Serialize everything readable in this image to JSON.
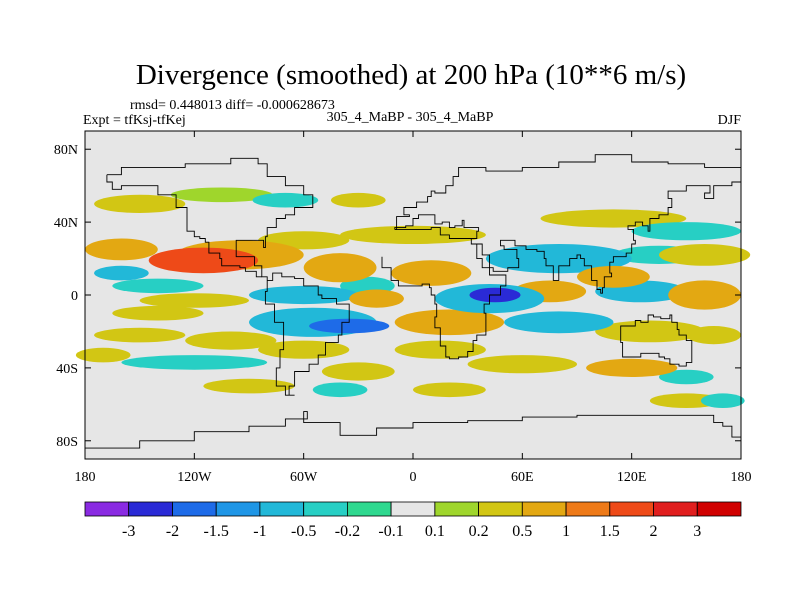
{
  "chart_data": {
    "type": "heatmap",
    "title": "Divergence (smoothed) at 200 hPa (10**6 m/s)",
    "stats": "rmsd= 0.448013 diff= -0.000628673",
    "experiment": "Expt = tfKsj-tfKej",
    "case": "305_4_MaBP - 305_4_MaBP",
    "season": "DJF",
    "x_ticks": [
      {
        "lon": -180,
        "label": "180"
      },
      {
        "lon": -120,
        "label": "120W"
      },
      {
        "lon": -60,
        "label": "60W"
      },
      {
        "lon": 0,
        "label": "0"
      },
      {
        "lon": 60,
        "label": "60E"
      },
      {
        "lon": 120,
        "label": "120E"
      },
      {
        "lon": 180,
        "label": "180"
      }
    ],
    "y_ticks": [
      {
        "lat": 80,
        "label": "80N"
      },
      {
        "lat": 40,
        "label": "40N"
      },
      {
        "lat": 0,
        "label": "0"
      },
      {
        "lat": -40,
        "label": "40S"
      },
      {
        "lat": -80,
        "label": "80S"
      }
    ],
    "xlim": [
      -180,
      180
    ],
    "ylim": [
      -90,
      90
    ],
    "levels": [
      "-3",
      "-2",
      "-1.5",
      "-1",
      "-0.5",
      "-0.2",
      "-0.1",
      "0.1",
      "0.2",
      "0.5",
      "1",
      "1.5",
      "2",
      "3"
    ],
    "colors": [
      "#8a2be2",
      "#2a2ad6",
      "#1e6be8",
      "#1f96e6",
      "#22b8d8",
      "#27cfc4",
      "#2fd88f",
      "#e6e6e6",
      "#9fd62c",
      "#d2c614",
      "#e3a812",
      "#ee7a18",
      "#ee4a18",
      "#e01e1e",
      "#d00000"
    ],
    "features": [
      {
        "lon": -150,
        "lat": 50,
        "wlon": 25,
        "wlat": 5,
        "v": 0.25
      },
      {
        "lon": -105,
        "lat": 55,
        "wlon": 28,
        "wlat": 4,
        "v": 0.2
      },
      {
        "lon": -70,
        "lat": 52,
        "wlon": 18,
        "wlat": 4,
        "v": -0.25
      },
      {
        "lon": -30,
        "lat": 52,
        "wlon": 15,
        "wlat": 4,
        "v": 0.25
      },
      {
        "lon": 110,
        "lat": 42,
        "wlon": 40,
        "wlat": 5,
        "v": 0.3
      },
      {
        "lon": 150,
        "lat": 35,
        "wlon": 30,
        "wlat": 5,
        "v": -0.4
      },
      {
        "lon": 160,
        "lat": 22,
        "wlon": 25,
        "wlat": 6,
        "v": 0.4
      },
      {
        "lon": -160,
        "lat": 25,
        "wlon": 20,
        "wlat": 6,
        "v": 0.6
      },
      {
        "lon": -115,
        "lat": 19,
        "wlon": 30,
        "wlat": 7,
        "v": 1.9
      },
      {
        "lon": -95,
        "lat": 22,
        "wlon": 35,
        "wlat": 8,
        "v": 0.7
      },
      {
        "lon": -60,
        "lat": 30,
        "wlon": 25,
        "wlat": 5,
        "v": 0.25
      },
      {
        "lon": -140,
        "lat": 5,
        "wlon": 25,
        "wlat": 4,
        "v": -0.3
      },
      {
        "lon": -160,
        "lat": 12,
        "wlon": 15,
        "wlat": 4,
        "v": -0.5
      },
      {
        "lon": 0,
        "lat": 33,
        "wlon": 40,
        "wlat": 5,
        "v": 0.4
      },
      {
        "lon": 80,
        "lat": 20,
        "wlon": 40,
        "wlat": 8,
        "v": -0.5
      },
      {
        "lon": 110,
        "lat": 10,
        "wlon": 20,
        "wlat": 6,
        "v": 0.6
      },
      {
        "lon": 135,
        "lat": 22,
        "wlon": 25,
        "wlat": 5,
        "v": -0.3
      },
      {
        "lon": -40,
        "lat": 15,
        "wlon": 20,
        "wlat": 8,
        "v": 0.6
      },
      {
        "lon": 10,
        "lat": 12,
        "wlon": 22,
        "wlat": 7,
        "v": 0.7
      },
      {
        "lon": 45,
        "lat": 0,
        "wlon": 14,
        "wlat": 4,
        "v": -2.4
      },
      {
        "lon": 42,
        "lat": -2,
        "wlon": 30,
        "wlat": 8,
        "v": -0.9
      },
      {
        "lon": 75,
        "lat": 2,
        "wlon": 20,
        "wlat": 6,
        "v": 0.7
      },
      {
        "lon": 125,
        "lat": 2,
        "wlon": 25,
        "wlat": 6,
        "v": -0.5
      },
      {
        "lon": 160,
        "lat": 0,
        "wlon": 20,
        "wlat": 8,
        "v": 0.6
      },
      {
        "lon": -60,
        "lat": 0,
        "wlon": 30,
        "wlat": 5,
        "v": -0.6
      },
      {
        "lon": -120,
        "lat": -3,
        "wlon": 30,
        "wlat": 4,
        "v": 0.35
      },
      {
        "lon": -25,
        "lat": 5,
        "wlon": 15,
        "wlat": 5,
        "v": -0.4
      },
      {
        "lon": -20,
        "lat": -2,
        "wlon": 15,
        "wlat": 5,
        "v": 0.9
      },
      {
        "lon": -140,
        "lat": -10,
        "wlon": 25,
        "wlat": 4,
        "v": 0.3
      },
      {
        "lon": -35,
        "lat": -17,
        "wlon": 22,
        "wlat": 4,
        "v": -1.8
      },
      {
        "lon": -55,
        "lat": -15,
        "wlon": 35,
        "wlat": 8,
        "v": -0.8
      },
      {
        "lon": 20,
        "lat": -15,
        "wlon": 30,
        "wlat": 7,
        "v": 0.6
      },
      {
        "lon": 80,
        "lat": -15,
        "wlon": 30,
        "wlat": 6,
        "v": -0.5
      },
      {
        "lon": 130,
        "lat": -20,
        "wlon": 30,
        "wlat": 6,
        "v": 0.4
      },
      {
        "lon": 165,
        "lat": -22,
        "wlon": 15,
        "wlat": 5,
        "v": 0.4
      },
      {
        "lon": -150,
        "lat": -22,
        "wlon": 25,
        "wlat": 4,
        "v": 0.5
      },
      {
        "lon": -100,
        "lat": -25,
        "wlon": 25,
        "wlat": 5,
        "v": 0.5
      },
      {
        "lon": -60,
        "lat": -30,
        "wlon": 25,
        "wlat": 5,
        "v": 0.3
      },
      {
        "lon": 15,
        "lat": -30,
        "wlon": 25,
        "wlat": 5,
        "v": 0.5
      },
      {
        "lon": -170,
        "lat": -33,
        "wlon": 15,
        "wlat": 4,
        "v": 0.3
      },
      {
        "lon": -120,
        "lat": -37,
        "wlon": 40,
        "wlat": 4,
        "v": -0.3
      },
      {
        "lon": -30,
        "lat": -42,
        "wlon": 20,
        "wlat": 5,
        "v": 0.4
      },
      {
        "lon": 60,
        "lat": -38,
        "wlon": 30,
        "wlat": 5,
        "v": 0.3
      },
      {
        "lon": 120,
        "lat": -40,
        "wlon": 25,
        "wlat": 5,
        "v": 0.6
      },
      {
        "lon": 150,
        "lat": -45,
        "wlon": 15,
        "wlat": 4,
        "v": -0.3
      },
      {
        "lon": -90,
        "lat": -50,
        "wlon": 25,
        "wlat": 4,
        "v": 0.35
      },
      {
        "lon": -40,
        "lat": -52,
        "wlon": 15,
        "wlat": 4,
        "v": -0.3
      },
      {
        "lon": 20,
        "lat": -52,
        "wlon": 20,
        "wlat": 4,
        "v": 0.3
      },
      {
        "lon": 150,
        "lat": -58,
        "wlon": 20,
        "wlat": 4,
        "v": 0.3
      },
      {
        "lon": 170,
        "lat": -58,
        "wlon": 12,
        "wlat": 4,
        "v": -0.3
      }
    ],
    "coastlines": [
      [
        [
          -168,
          66
        ],
        [
          -160,
          70
        ],
        [
          -140,
          70
        ],
        [
          -125,
          72
        ],
        [
          -100,
          75
        ],
        [
          -85,
          72
        ],
        [
          -80,
          65
        ],
        [
          -70,
          60
        ],
        [
          -60,
          55
        ],
        [
          -55,
          48
        ],
        [
          -65,
          44
        ],
        [
          -70,
          42
        ],
        [
          -75,
          37
        ],
        [
          -80,
          32
        ],
        [
          -81,
          26
        ],
        [
          -82,
          30
        ],
        [
          -90,
          30
        ],
        [
          -97,
          27
        ],
        [
          -97,
          21
        ],
        [
          -90,
          21
        ],
        [
          -87,
          16
        ],
        [
          -83,
          10
        ],
        [
          -80,
          8
        ],
        [
          -78,
          8
        ],
        [
          -80,
          2
        ],
        [
          -81,
          -5
        ],
        [
          -76,
          -15
        ],
        [
          -71,
          -20
        ],
        [
          -71,
          -30
        ],
        [
          -73,
          -40
        ],
        [
          -75,
          -50
        ],
        [
          -70,
          -55
        ],
        [
          -65,
          -55
        ],
        [
          -68,
          -50
        ],
        [
          -65,
          -42
        ],
        [
          -57,
          -38
        ],
        [
          -52,
          -33
        ],
        [
          -48,
          -26
        ],
        [
          -41,
          -22
        ],
        [
          -39,
          -15
        ],
        [
          -35,
          -8
        ],
        [
          -35,
          -5
        ],
        [
          -42,
          -2
        ],
        [
          -50,
          0
        ],
        [
          -52,
          5
        ],
        [
          -60,
          9
        ],
        [
          -65,
          10
        ],
        [
          -72,
          12
        ],
        [
          -77,
          8
        ],
        [
          -80,
          8
        ]
      ],
      [
        [
          -83,
          10
        ],
        [
          -86,
          13
        ],
        [
          -92,
          15
        ],
        [
          -95,
          16
        ],
        [
          -105,
          20
        ],
        [
          -106,
          23
        ],
        [
          -110,
          23
        ],
        [
          -112,
          29
        ],
        [
          -114,
          31
        ],
        [
          -117,
          32
        ],
        [
          -120,
          35
        ],
        [
          -124,
          40
        ],
        [
          -124,
          48
        ],
        [
          -130,
          55
        ],
        [
          -140,
          60
        ],
        [
          -150,
          60
        ],
        [
          -160,
          58
        ],
        [
          -165,
          62
        ],
        [
          -168,
          66
        ]
      ],
      [
        [
          -10,
          36
        ],
        [
          -9,
          43
        ],
        [
          -2,
          44
        ],
        [
          -5,
          48
        ],
        [
          2,
          51
        ],
        [
          8,
          54
        ],
        [
          10,
          57
        ],
        [
          12,
          56
        ],
        [
          18,
          60
        ],
        [
          22,
          65
        ],
        [
          25,
          70
        ],
        [
          30,
          70
        ],
        [
          40,
          68
        ],
        [
          60,
          70
        ],
        [
          80,
          73
        ],
        [
          100,
          77
        ],
        [
          120,
          73
        ],
        [
          140,
          72
        ],
        [
          160,
          70
        ],
        [
          180,
          68
        ]
      ],
      [
        [
          -10,
          36
        ],
        [
          -6,
          36
        ],
        [
          -2,
          36
        ],
        [
          10,
          37
        ],
        [
          15,
          33
        ],
        [
          20,
          31
        ],
        [
          30,
          31
        ],
        [
          32,
          31
        ],
        [
          35,
          35
        ],
        [
          36,
          37
        ],
        [
          28,
          41
        ],
        [
          27,
          38
        ],
        [
          23,
          37
        ],
        [
          20,
          40
        ],
        [
          16,
          39
        ],
        [
          12,
          44
        ],
        [
          8,
          44
        ],
        [
          3,
          42
        ],
        [
          0,
          38
        ],
        [
          -4,
          37
        ],
        [
          -10,
          36
        ]
      ],
      [
        [
          -17,
          21
        ],
        [
          -17,
          15
        ],
        [
          -12,
          8
        ],
        [
          -8,
          5
        ],
        [
          -2,
          5
        ],
        [
          5,
          6
        ],
        [
          9,
          4
        ],
        [
          10,
          0
        ],
        [
          12,
          -5
        ],
        [
          13,
          -12
        ],
        [
          12,
          -18
        ],
        [
          15,
          -28
        ],
        [
          18,
          -34
        ],
        [
          20,
          -35
        ],
        [
          25,
          -34
        ],
        [
          30,
          -31
        ],
        [
          33,
          -25
        ],
        [
          35,
          -22
        ],
        [
          40,
          -15
        ],
        [
          40,
          -10
        ],
        [
          39,
          -5
        ],
        [
          42,
          0
        ],
        [
          48,
          5
        ],
        [
          51,
          11
        ],
        [
          44,
          11
        ],
        [
          42,
          15
        ],
        [
          38,
          20
        ],
        [
          35,
          28
        ],
        [
          32,
          31
        ]
      ],
      [
        [
          34,
          28
        ],
        [
          38,
          22
        ],
        [
          42,
          15
        ],
        [
          44,
          13
        ],
        [
          52,
          15
        ],
        [
          58,
          20
        ],
        [
          57,
          25
        ],
        [
          50,
          27
        ],
        [
          48,
          30
        ],
        [
          50,
          30
        ],
        [
          56,
          27
        ],
        [
          62,
          25
        ],
        [
          68,
          24
        ],
        [
          72,
          20
        ],
        [
          73,
          16
        ],
        [
          77,
          8
        ],
        [
          80,
          13
        ],
        [
          80,
          16
        ],
        [
          86,
          20
        ],
        [
          90,
          22
        ],
        [
          92,
          20
        ],
        [
          94,
          16
        ],
        [
          98,
          16
        ],
        [
          98,
          8
        ],
        [
          101,
          3
        ],
        [
          103,
          1
        ],
        [
          104,
          4
        ],
        [
          105,
          10
        ],
        [
          109,
          12
        ],
        [
          108,
          18
        ],
        [
          110,
          21
        ],
        [
          117,
          23
        ],
        [
          120,
          28
        ],
        [
          122,
          30
        ],
        [
          121,
          36
        ],
        [
          118,
          38
        ],
        [
          122,
          40
        ],
        [
          126,
          38
        ],
        [
          129,
          35
        ],
        [
          130,
          42
        ],
        [
          135,
          44
        ],
        [
          140,
          48
        ],
        [
          142,
          53
        ],
        [
          140,
          57
        ],
        [
          150,
          60
        ],
        [
          160,
          60
        ],
        [
          163,
          56
        ],
        [
          160,
          53
        ],
        [
          165,
          60
        ],
        [
          175,
          62
        ],
        [
          180,
          65
        ]
      ],
      [
        [
          114,
          -22
        ],
        [
          114,
          -26
        ],
        [
          115,
          -34
        ],
        [
          120,
          -34
        ],
        [
          125,
          -32
        ],
        [
          130,
          -32
        ],
        [
          135,
          -34
        ],
        [
          138,
          -35
        ],
        [
          141,
          -38
        ],
        [
          146,
          -39
        ],
        [
          150,
          -37
        ],
        [
          153,
          -31
        ],
        [
          153,
          -25
        ],
        [
          150,
          -22
        ],
        [
          146,
          -19
        ],
        [
          145,
          -15
        ],
        [
          142,
          -11
        ],
        [
          141,
          -13
        ],
        [
          136,
          -12
        ],
        [
          132,
          -11
        ],
        [
          129,
          -15
        ],
        [
          125,
          -14
        ],
        [
          122,
          -17
        ],
        [
          114,
          -22
        ]
      ],
      [
        [
          -180,
          -84
        ],
        [
          -150,
          -80
        ],
        [
          -120,
          -75
        ],
        [
          -90,
          -72
        ],
        [
          -70,
          -68
        ],
        [
          -58,
          -64
        ],
        [
          -60,
          -70
        ],
        [
          -40,
          -77
        ],
        [
          -20,
          -73
        ],
        [
          0,
          -70
        ],
        [
          30,
          -69
        ],
        [
          60,
          -67
        ],
        [
          90,
          -66
        ],
        [
          120,
          -66
        ],
        [
          140,
          -66
        ],
        [
          165,
          -70
        ],
        [
          170,
          -72
        ],
        [
          175,
          -78
        ],
        [
          180,
          -80
        ]
      ]
    ]
  }
}
